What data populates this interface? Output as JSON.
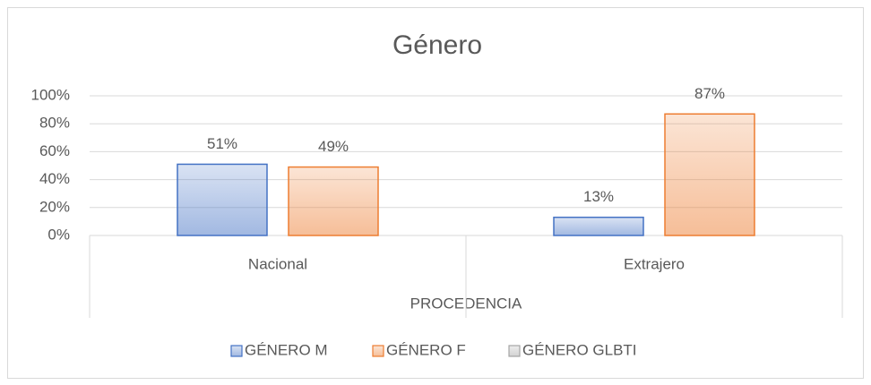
{
  "chart_data": {
    "type": "bar",
    "title": "Género",
    "categories": [
      "Nacional",
      "Extrajero"
    ],
    "x_label": "PROCEDENCIA",
    "series": [
      {
        "name": "GÉNERO M",
        "color": "#4472c4",
        "values": [
          51,
          13
        ],
        "value_labels": [
          "51%",
          "13%"
        ]
      },
      {
        "name": "GÉNERO F",
        "color": "#ed7d31",
        "values": [
          49,
          87
        ],
        "value_labels": [
          "49%",
          "87%"
        ]
      },
      {
        "name": "GÉNERO GLBTI",
        "color": "#a5a5a5",
        "values": [
          null,
          null
        ],
        "value_labels": [
          null,
          null
        ]
      }
    ],
    "ylim": [
      0,
      100
    ],
    "yticks": [
      {
        "value": 0,
        "label": "0%"
      },
      {
        "value": 20,
        "label": "20%"
      },
      {
        "value": 40,
        "label": "40%"
      },
      {
        "value": 60,
        "label": "60%"
      },
      {
        "value": 80,
        "label": "80%"
      },
      {
        "value": 100,
        "label": "100%"
      }
    ],
    "grid": true,
    "legend": "bottom"
  }
}
